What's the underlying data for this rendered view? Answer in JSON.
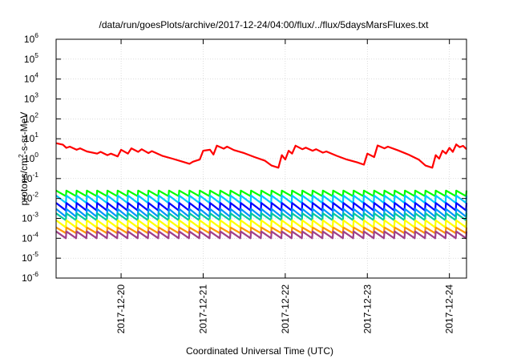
{
  "chart_data": {
    "type": "line",
    "title": "/data/run/goesPlots/archive/2017-12-24/04:00/flux/../flux/5daysMarsFluxes.txt",
    "xlabel": "Coordinated Universal Time (UTC)",
    "ylabel": {
      "text": "protons/cm2-s-sr-MeV",
      "prefix": "protons/cm",
      "sup": "2",
      "suffix": "-s-sr-MeV"
    },
    "yscale": "log",
    "ylim": [
      1e-06,
      1000000.0
    ],
    "xlim": [
      "2017-12-19T05:00",
      "2017-12-24T05:00"
    ],
    "grid": true,
    "x_ticks": [
      "2017-12-20",
      "2017-12-21",
      "2017-12-22",
      "2017-12-23",
      "2017-12-24"
    ],
    "y_ticks": [
      {
        "base": "10",
        "exp": "-6",
        "value": 1e-06
      },
      {
        "base": "10",
        "exp": "-5",
        "value": 1e-05
      },
      {
        "base": "10",
        "exp": "-4",
        "value": 0.0001
      },
      {
        "base": "10",
        "exp": "-3",
        "value": 0.001
      },
      {
        "base": "10",
        "exp": "-2",
        "value": 0.01
      },
      {
        "base": "10",
        "exp": "-1",
        "value": 0.1
      },
      {
        "base": "10",
        "exp": "0",
        "value": 1
      },
      {
        "base": "10",
        "exp": "1",
        "value": 10
      },
      {
        "base": "10",
        "exp": "2",
        "value": 100
      },
      {
        "base": "10",
        "exp": "3",
        "value": 1000
      },
      {
        "base": "10",
        "exp": "4",
        "value": 10000
      },
      {
        "base": "10",
        "exp": "5",
        "value": 100000
      },
      {
        "base": "10",
        "exp": "6",
        "value": 1000000
      }
    ],
    "series": [
      {
        "color": "#ff0000",
        "points": [
          [
            "2017-12-19T05:00",
            6
          ],
          [
            "2017-12-19T07:00",
            5
          ],
          [
            "2017-12-19T08:00",
            3.5
          ],
          [
            "2017-12-19T09:00",
            4
          ],
          [
            "2017-12-19T11:00",
            2.8
          ],
          [
            "2017-12-19T12:00",
            3.3
          ],
          [
            "2017-12-19T14:00",
            2.3
          ],
          [
            "2017-12-19T17:00",
            1.8
          ],
          [
            "2017-12-19T18:00",
            2.2
          ],
          [
            "2017-12-19T20:00",
            1.5
          ],
          [
            "2017-12-19T21:00",
            1.8
          ],
          [
            "2017-12-19T23:00",
            1.3
          ],
          [
            "2017-12-20T00:00",
            2.8
          ],
          [
            "2017-12-20T02:00",
            1.8
          ],
          [
            "2017-12-20T03:00",
            3.3
          ],
          [
            "2017-12-20T05:00",
            2.2
          ],
          [
            "2017-12-20T06:00",
            3
          ],
          [
            "2017-12-20T08:00",
            1.9
          ],
          [
            "2017-12-20T09:00",
            2.4
          ],
          [
            "2017-12-20T12:00",
            1.4
          ],
          [
            "2017-12-20T15:00",
            1
          ],
          [
            "2017-12-20T18:00",
            0.7
          ],
          [
            "2017-12-20T20:00",
            0.55
          ],
          [
            "2017-12-20T21:00",
            0.7
          ],
          [
            "2017-12-20T23:00",
            0.9
          ],
          [
            "2017-12-21T00:00",
            2.5
          ],
          [
            "2017-12-21T02:00",
            2.8
          ],
          [
            "2017-12-21T03:00",
            1.6
          ],
          [
            "2017-12-21T04:00",
            4.5
          ],
          [
            "2017-12-21T06:00",
            3.2
          ],
          [
            "2017-12-21T07:00",
            4
          ],
          [
            "2017-12-21T09:00",
            2.7
          ],
          [
            "2017-12-21T12:00",
            1.9
          ],
          [
            "2017-12-21T15:00",
            1.2
          ],
          [
            "2017-12-21T18:00",
            0.8
          ],
          [
            "2017-12-21T20:00",
            0.45
          ],
          [
            "2017-12-21T22:00",
            0.35
          ],
          [
            "2017-12-21T23:00",
            1.5
          ],
          [
            "2017-12-22T00:00",
            0.9
          ],
          [
            "2017-12-22T01:00",
            2.5
          ],
          [
            "2017-12-22T02:00",
            1.8
          ],
          [
            "2017-12-22T03:00",
            4.5
          ],
          [
            "2017-12-22T05:00",
            3
          ],
          [
            "2017-12-22T06:00",
            3.6
          ],
          [
            "2017-12-22T08:00",
            2.5
          ],
          [
            "2017-12-22T09:00",
            3
          ],
          [
            "2017-12-22T11:00",
            2
          ],
          [
            "2017-12-22T12:00",
            2.3
          ],
          [
            "2017-12-22T15:00",
            1.4
          ],
          [
            "2017-12-22T18:00",
            0.9
          ],
          [
            "2017-12-22T21:00",
            0.65
          ],
          [
            "2017-12-22T23:00",
            0.5
          ],
          [
            "2017-12-23T00:00",
            1.8
          ],
          [
            "2017-12-23T02:00",
            1.2
          ],
          [
            "2017-12-23T03:00",
            4.6
          ],
          [
            "2017-12-23T05:00",
            3.3
          ],
          [
            "2017-12-23T06:00",
            4
          ],
          [
            "2017-12-23T09:00",
            2.6
          ],
          [
            "2017-12-23T12:00",
            1.6
          ],
          [
            "2017-12-23T15:00",
            0.9
          ],
          [
            "2017-12-23T17:00",
            0.45
          ],
          [
            "2017-12-23T19:00",
            0.35
          ],
          [
            "2017-12-23T20:00",
            1.5
          ],
          [
            "2017-12-23T21:00",
            1
          ],
          [
            "2017-12-23T22:00",
            2.5
          ],
          [
            "2017-12-23T23:00",
            1.8
          ],
          [
            "2017-12-24T00:00",
            3.5
          ],
          [
            "2017-12-24T01:00",
            2.2
          ],
          [
            "2017-12-24T02:00",
            5.2
          ],
          [
            "2017-12-24T03:00",
            3.8
          ],
          [
            "2017-12-24T04:00",
            4.4
          ],
          [
            "2017-12-24T05:00",
            3
          ]
        ]
      },
      {
        "color": "#00ff00",
        "sawtooth": {
          "high": 0.025,
          "low": 0.013,
          "period_hours": 3
        }
      },
      {
        "color": "#00c8ff",
        "sawtooth": {
          "high": 0.014,
          "low": 0.006,
          "period_hours": 3
        }
      },
      {
        "color": "#0000ff",
        "sawtooth": {
          "high": 0.006,
          "low": 0.0025,
          "period_hours": 3
        }
      },
      {
        "color": "#0090ff",
        "sawtooth": {
          "high": 0.003,
          "low": 0.0012,
          "period_hours": 3
        }
      },
      {
        "color": "#00c8a0",
        "sawtooth": {
          "high": 0.0018,
          "low": 0.0008,
          "period_hours": 3
        }
      },
      {
        "color": "#ffff00",
        "sawtooth": {
          "high": 0.0008,
          "low": 0.00035,
          "period_hours": 3
        }
      },
      {
        "color": "#ff9900",
        "sawtooth": {
          "high": 0.00035,
          "low": 0.00018,
          "period_hours": 3
        }
      },
      {
        "color": "#a0408a",
        "sawtooth": {
          "high": 0.00022,
          "low": 0.0001,
          "period_hours": 3
        }
      }
    ]
  }
}
